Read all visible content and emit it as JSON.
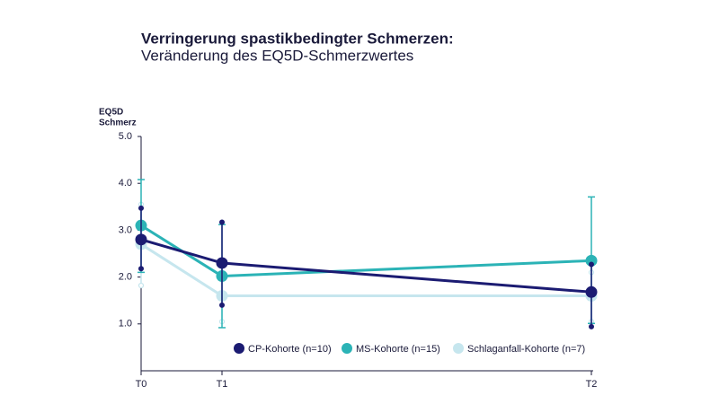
{
  "chart_data": {
    "type": "line",
    "title": "Verringerung spastikbedingter Schmerzen:",
    "subtitle": "Veränderung des EQ5D-Schmerzwertes",
    "ylabel": [
      "EQ5D",
      "Schmerz"
    ],
    "categories": [
      "T0",
      "T1",
      "T2"
    ],
    "ylim": [
      0,
      5
    ],
    "yticks": [
      {
        "value": 1,
        "label": "1.0"
      },
      {
        "value": 2,
        "label": "2.0"
      },
      {
        "value": 3,
        "label": "3.0"
      },
      {
        "value": 4,
        "label": "4.0"
      },
      {
        "value": 5,
        "label": "5.0"
      }
    ],
    "legend": "bottom-right",
    "series": [
      {
        "name": "CP-Kohorte (n=10)",
        "color": "#1b1b72",
        "values": [
          2.8,
          2.3,
          1.68
        ],
        "high": [
          3.47,
          3.17,
          2.27
        ],
        "low": [
          2.18,
          1.4,
          0.94
        ]
      },
      {
        "name": "MS-Kohorte (n=15)",
        "color": "#2bb3b6",
        "values": [
          3.1,
          2.02,
          2.35
        ],
        "high": [
          4.08,
          3.12,
          3.71
        ],
        "low": [
          2.1,
          0.92,
          1.01
        ]
      },
      {
        "name": "Schlaganfall-Kohorte (n=7)",
        "color": "#c6e6ee",
        "values": [
          2.7,
          1.6,
          1.6
        ],
        "high": [
          3.55,
          2.1,
          2.1
        ],
        "low": [
          1.82,
          1.05,
          1.05
        ]
      }
    ]
  }
}
